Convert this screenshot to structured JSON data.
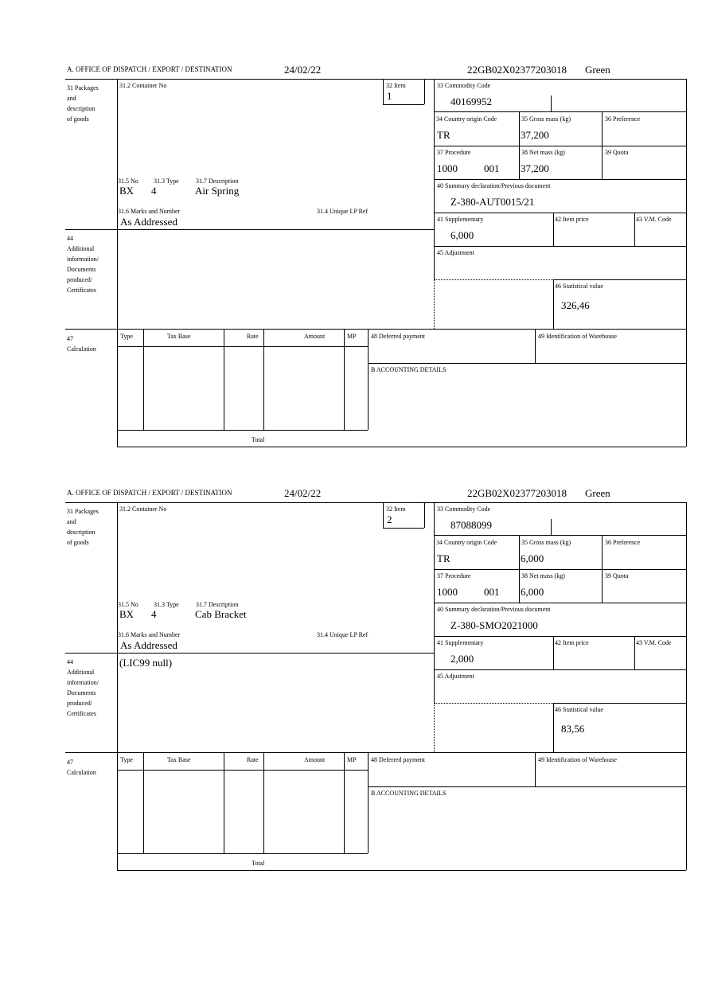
{
  "labels": {
    "office": "A.  OFFICE OF DISPATCH / EXPORT / DESTINATION",
    "box31": "31 Packages\nand\ndescription\nof goods",
    "container": "31.2 Container No",
    "item": "32 Item",
    "no": "31.5 No",
    "type31": "31.3 Type",
    "description": "31.7 Description",
    "marks": "31.6 Marks and Number",
    "unique_ref": "31.4 Unique LP Ref",
    "commodity": "33 Commodity Code",
    "country": "34 Country origin Code",
    "gross": "35 Gross mass (kg)",
    "preference": "36 Preference",
    "procedure": "37 Procedure",
    "net": "38 Net mass (kg)",
    "quota": "39 Quota",
    "summary": "40 Summary declaration/Previous document",
    "supplementary": "41 Supplementary",
    "item_price": "42 Item price",
    "vm_code": "43 V.M. Code",
    "box44": "44\nAdditional\ninformation/\nDocuments\nproduced/\nCertificates",
    "adjustment": "45 Adjustment",
    "stat_value": "46 Statistical value",
    "box47": "47\nCalculation",
    "col_type": "Type",
    "col_tax_base": "Tax Base",
    "col_rate": "Rate",
    "col_amount": "Amount",
    "col_mp": "MP",
    "deferred": "48 Deferred payment",
    "warehouse": "49 Identification of Warehouse",
    "accounting": "B ACCOUNTING DETAILS",
    "total": "Total"
  },
  "forms": [
    {
      "date": "24/02/22",
      "reference": "22GB02X02377203018",
      "route": "Green",
      "item": "1",
      "package_kind": "BX",
      "package_count": "4",
      "description": "Air Spring",
      "marks": "As Addressed",
      "additional_info": "",
      "commodity_code": "40169952",
      "country_origin": "TR",
      "gross_mass": "37,200",
      "procedure": "1000",
      "procedure_add": "001",
      "net_mass": "37,200",
      "summary_doc": "Z-380-AUT0015/21",
      "supplementary": "6,000",
      "stat_value": "326,46"
    },
    {
      "date": "24/02/22",
      "reference": "22GB02X02377203018",
      "route": "Green",
      "item": "2",
      "package_kind": "BX",
      "package_count": "4",
      "description": "Cab Bracket",
      "marks": "As Addressed",
      "additional_info": "(LIC99 null)",
      "commodity_code": "87088099",
      "country_origin": "TR",
      "gross_mass": "6,000",
      "procedure": "1000",
      "procedure_add": "001",
      "net_mass": "6,000",
      "summary_doc": "Z-380-SMO2021000",
      "supplementary": "2,000",
      "stat_value": "83,56"
    }
  ]
}
